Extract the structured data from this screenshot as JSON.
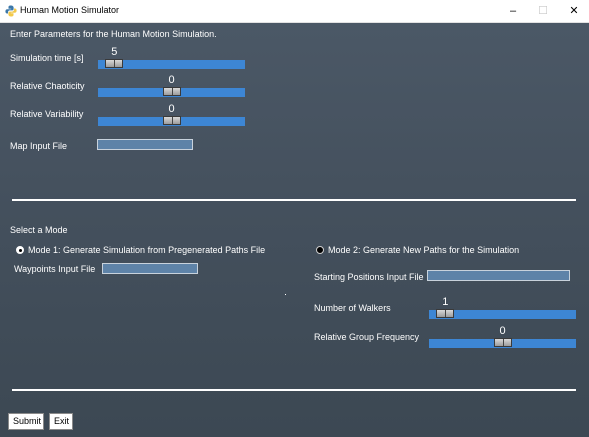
{
  "window": {
    "title": "Human Motion Simulator",
    "minimize_glyph": "–",
    "maximize_glyph": "☐",
    "close_glyph": "✕"
  },
  "form": {
    "intro": "Enter Parameters for the Human Motion Simulation.",
    "simulation_time": {
      "label": "Simulation time [s]",
      "value": "5",
      "fraction": 0.05
    },
    "relative_chaoticity": {
      "label": "Relative Chaoticity",
      "value": "0",
      "fraction": 0.5
    },
    "relative_variability": {
      "label": "Relative Variability",
      "value": "0",
      "fraction": 0.5
    },
    "map_input_file": {
      "label": "Map Input File",
      "value": ""
    }
  },
  "mode": {
    "heading": "Select a Mode",
    "mode1": {
      "label": "Mode 1: Generate Simulation from Pregenerated Paths File",
      "selected": true,
      "waypoints_label": "Waypoints Input File",
      "waypoints_value": ""
    },
    "mode2": {
      "label": "Mode 2: Generate New Paths for the Simulation",
      "selected": false,
      "starting_positions_label": "Starting Positions Input File",
      "starting_positions_value": "",
      "number_of_walkers": {
        "label": "Number of Walkers",
        "value": "1",
        "fraction": 0.05
      },
      "relative_group_frequency": {
        "label": "Relative Group Frequency",
        "value": "0",
        "fraction": 0.5
      }
    }
  },
  "buttons": {
    "submit": "Submit",
    "exit": "Exit"
  },
  "colors": {
    "slider_track": "#3d86d4",
    "entry_fill": "#5e83a8",
    "background": "#44505d"
  }
}
